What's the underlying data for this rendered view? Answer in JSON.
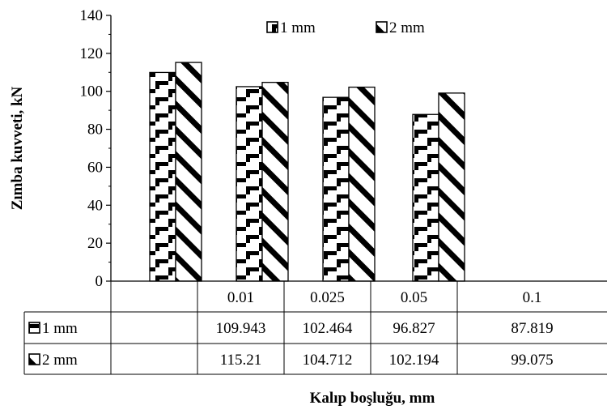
{
  "chart_data": {
    "type": "bar",
    "title": "",
    "xlabel": "Kalıp boşluğu, mm",
    "ylabel": "Zımba kuvveti,  kN",
    "ylim": [
      0,
      140
    ],
    "yticks": [
      0,
      20,
      40,
      60,
      80,
      100,
      120,
      140
    ],
    "categories": [
      "0.01",
      "0.025",
      "0.05",
      "0.1"
    ],
    "series": [
      {
        "name": "1 mm",
        "values": [
          109.943,
          102.464,
          96.827,
          87.819
        ],
        "display": [
          "109.943",
          "102.464",
          "96.827",
          "87.819"
        ],
        "pattern": "brick"
      },
      {
        "name": "2 mm",
        "values": [
          115.21,
          104.712,
          102.194,
          99.075
        ],
        "display": [
          "115.21",
          "104.712",
          "102.194",
          "99.075"
        ],
        "pattern": "diagonal"
      }
    ],
    "legend_position": "top",
    "grid": false,
    "data_table": true
  },
  "colors": {
    "ink": "#000000",
    "background": "#ffffff",
    "fill": "#ffffff"
  }
}
